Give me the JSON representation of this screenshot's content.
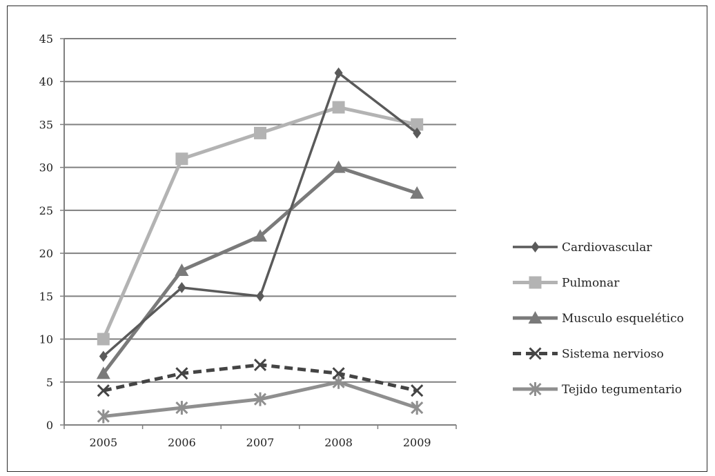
{
  "chart_data": {
    "type": "line",
    "title": "",
    "xlabel": "",
    "ylabel": "",
    "categories": [
      "2005",
      "2006",
      "2007",
      "2008",
      "2009"
    ],
    "ylim": [
      0,
      45
    ],
    "yticks": [
      0,
      5,
      10,
      15,
      20,
      25,
      30,
      35,
      40,
      45
    ],
    "grid": "horizontal",
    "legend_position": "right",
    "series": [
      {
        "name": "Cardiovascular",
        "values": [
          8,
          16,
          15,
          41,
          34
        ],
        "color": "#5a5a5a",
        "marker": "diamond",
        "dash": "solid"
      },
      {
        "name": "Pulmonar",
        "values": [
          10,
          31,
          34,
          37,
          35
        ],
        "color": "#b3b3b3",
        "marker": "square",
        "dash": "solid"
      },
      {
        "name": "Musculo esquelético",
        "values": [
          6,
          18,
          22,
          30,
          27
        ],
        "color": "#7a7a7a",
        "marker": "triangle",
        "dash": "solid"
      },
      {
        "name": "Sistema nervioso",
        "values": [
          4,
          6,
          7,
          6,
          4
        ],
        "color": "#444444",
        "marker": "x",
        "dash": "dashed"
      },
      {
        "name": "Tejido tegumentario",
        "values": [
          1,
          2,
          3,
          5,
          2
        ],
        "color": "#8f8f8f",
        "marker": "star",
        "dash": "solid"
      }
    ]
  }
}
